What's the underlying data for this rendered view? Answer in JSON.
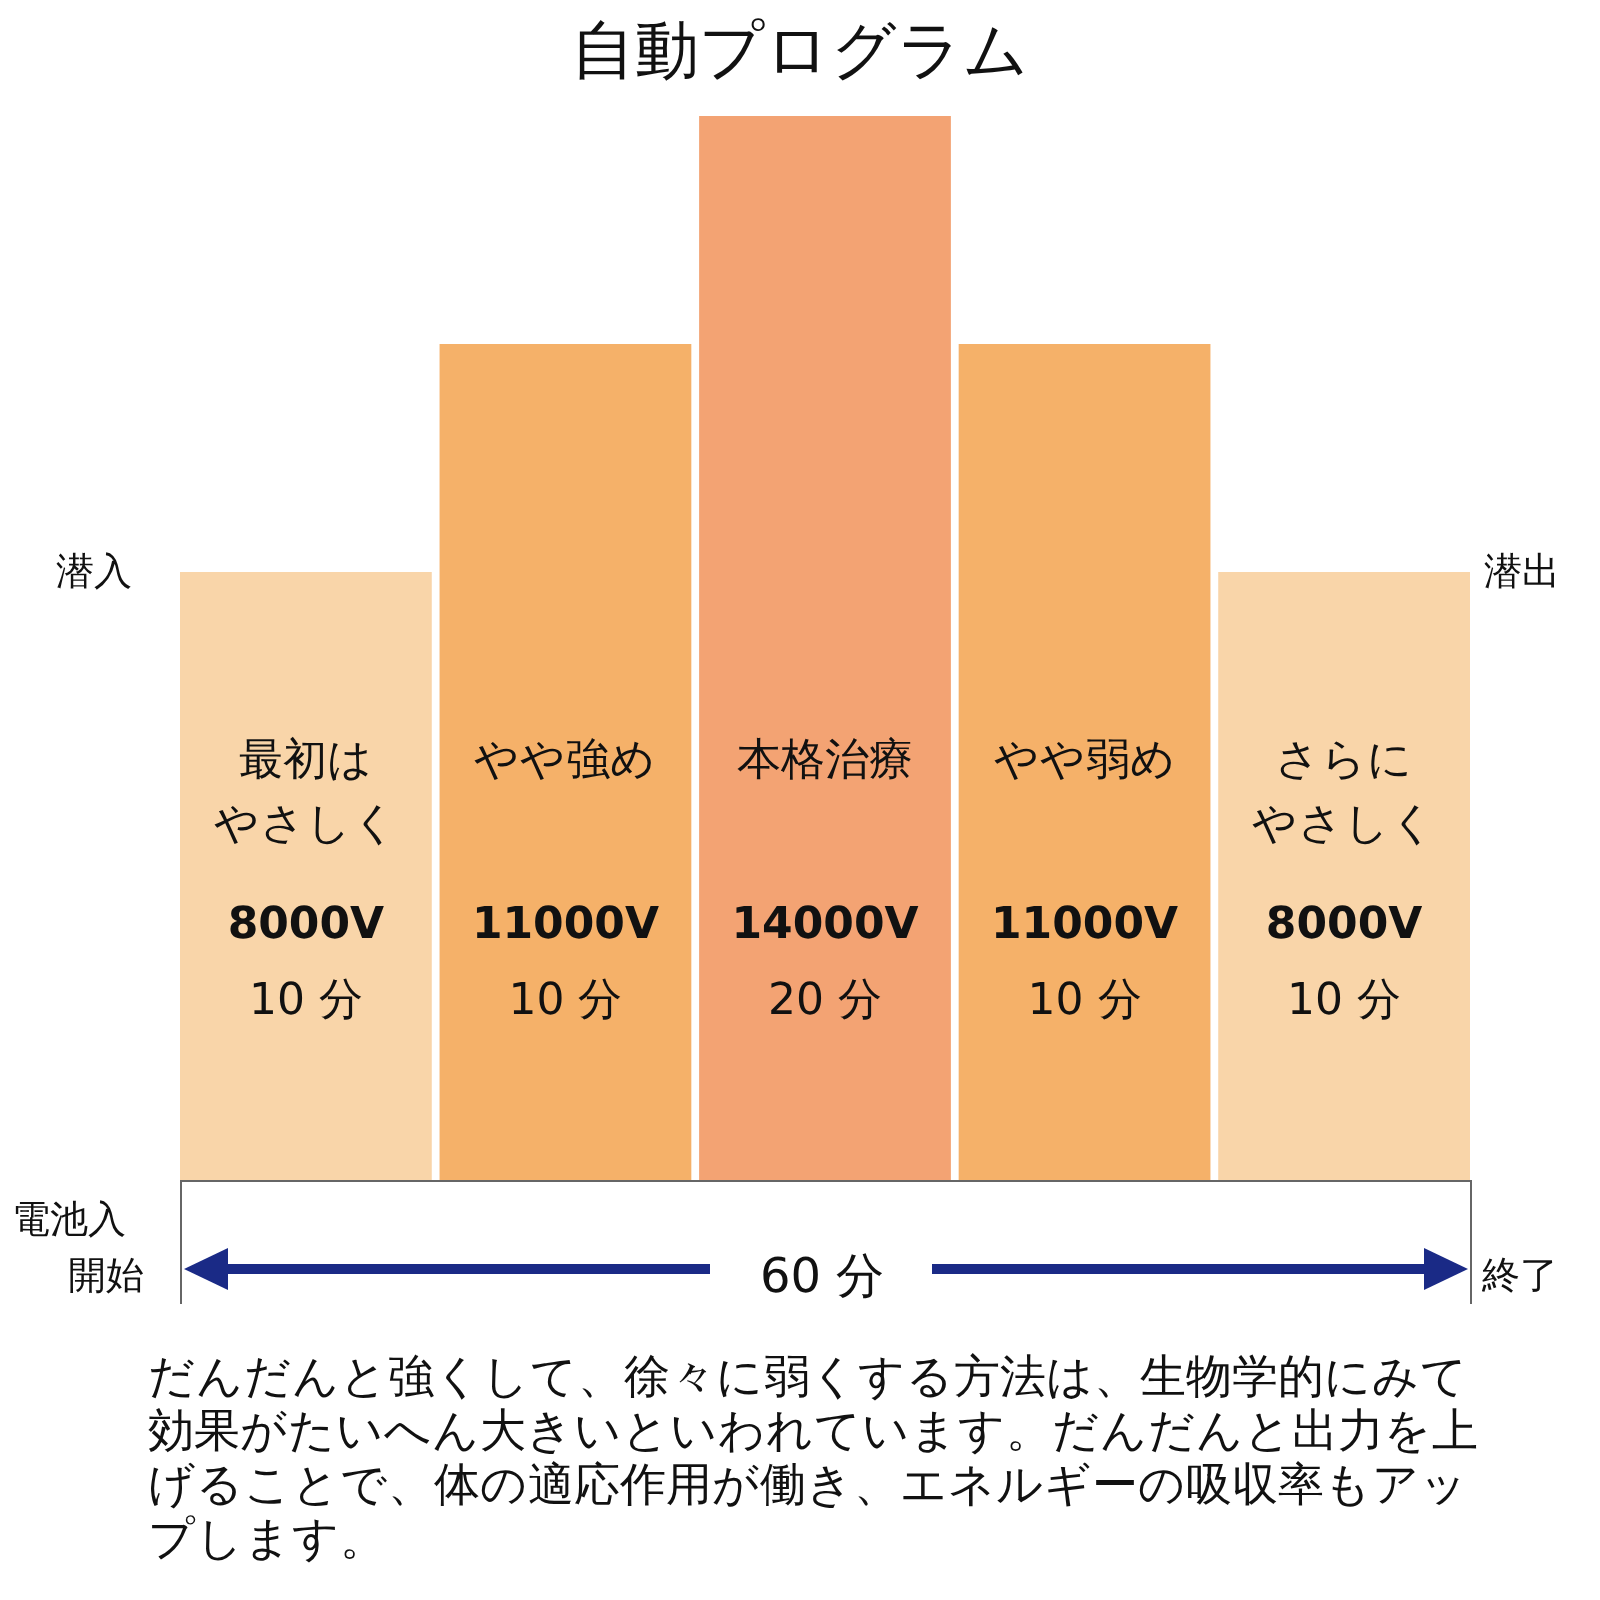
{
  "chart_data": {
    "type": "bar",
    "title": "自動プログラム",
    "categories": [
      "最初はやさしく",
      "やや強め",
      "本格治療",
      "やや弱め",
      "さらにやさしく"
    ],
    "values": [
      8000,
      11000,
      14000,
      11000,
      8000
    ],
    "colors": [
      "#f9d5a9",
      "#f5b169",
      "#f3a373",
      "#f5b169",
      "#f9d5a9"
    ],
    "value_labels": [
      "8000V",
      "11000V",
      "14000V",
      "11000V",
      "8000V"
    ],
    "annotations": [
      "潜入",
      "潜出",
      "電池入",
      "開始",
      "終了",
      "60 分",
      "だんだんと強くして、徐々に弱くする方法は、生物学的にみて効果がたいへん大きいといわれています。だんだんと出力を上げることで、体の適応作用が働き、エネルギーの吸収率もアップします。",
      "10 分",
      "10 分",
      "20 分",
      "10 分",
      "10 分"
    ],
    "tick_labels": false,
    "legend": false
  }
}
